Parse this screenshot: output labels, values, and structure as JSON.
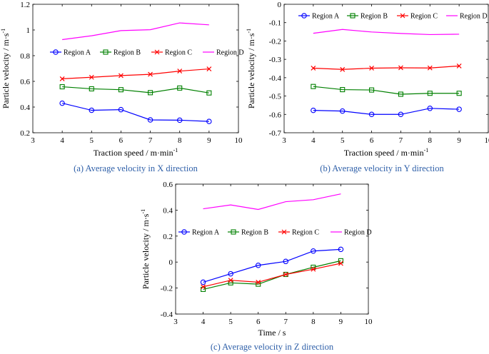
{
  "colors": {
    "region_a": "#0000ff",
    "region_b": "#008000",
    "region_c": "#ff0000",
    "region_d": "#ff00ff",
    "caption": "#2e5fa8",
    "axis": "#000000"
  },
  "chart_data": [
    {
      "id": "a",
      "type": "line",
      "caption": "(a) Average velocity in X direction",
      "xlabel": "Traction speed / m·min",
      "xlabel_sup": "-1",
      "ylabel": "Particle velocity / m·s",
      "ylabel_sup": "-1",
      "xlim": [
        3,
        10
      ],
      "ylim": [
        0.2,
        1.2
      ],
      "xticks": [
        3,
        4,
        5,
        6,
        7,
        8,
        9,
        10
      ],
      "yticks": [
        0.2,
        0.4,
        0.6,
        0.8,
        1,
        1.2
      ],
      "legend": "mid-right, horizontal",
      "x": [
        4,
        5,
        6,
        7,
        8,
        9
      ],
      "series": [
        {
          "name": "Region A",
          "marker": "circle",
          "values": [
            0.43,
            0.375,
            0.38,
            0.3,
            0.298,
            0.288
          ]
        },
        {
          "name": "Region B",
          "marker": "square",
          "values": [
            0.558,
            0.542,
            0.535,
            0.512,
            0.548,
            0.51
          ]
        },
        {
          "name": "Region C",
          "marker": "cross",
          "values": [
            0.62,
            0.632,
            0.645,
            0.655,
            0.68,
            0.697
          ]
        },
        {
          "name": "Region D",
          "marker": "none",
          "values": [
            0.925,
            0.955,
            0.995,
            1.002,
            1.055,
            1.04
          ]
        }
      ]
    },
    {
      "id": "b",
      "type": "line",
      "caption": "(b) Average velocity in Y direction",
      "xlabel": "Traction speed / m·min",
      "xlabel_sup": "-1",
      "ylabel": "Particle velocity / m·s",
      "ylabel_sup": "-1",
      "xlim": [
        3,
        10
      ],
      "ylim": [
        -0.7,
        0
      ],
      "xticks": [
        3,
        4,
        5,
        6,
        7,
        8,
        9,
        10
      ],
      "yticks": [
        -0.7,
        -0.6,
        -0.5,
        -0.4,
        -0.3,
        -0.2,
        -0.1,
        0
      ],
      "legend": "top, horizontal",
      "x": [
        4,
        5,
        6,
        7,
        8,
        9
      ],
      "series": [
        {
          "name": "Region A",
          "marker": "circle",
          "values": [
            -0.578,
            -0.582,
            -0.6,
            -0.6,
            -0.567,
            -0.572
          ]
        },
        {
          "name": "Region B",
          "marker": "square",
          "values": [
            -0.448,
            -0.465,
            -0.467,
            -0.49,
            -0.485,
            -0.485
          ]
        },
        {
          "name": "Region C",
          "marker": "cross",
          "values": [
            -0.348,
            -0.355,
            -0.348,
            -0.346,
            -0.347,
            -0.336
          ]
        },
        {
          "name": "Region D",
          "marker": "none",
          "values": [
            -0.158,
            -0.137,
            -0.151,
            -0.159,
            -0.165,
            -0.163
          ]
        }
      ]
    },
    {
      "id": "c",
      "type": "line",
      "caption": "(c) Average velocity in Z direction",
      "xlabel": "Time / s",
      "xlabel_sup": "",
      "ylabel": "Particle velocity / m·s",
      "ylabel_sup": "-1",
      "xlim": [
        3,
        10
      ],
      "ylim": [
        -0.4,
        0.6
      ],
      "xticks": [
        3,
        4,
        5,
        6,
        7,
        8,
        9,
        10
      ],
      "yticks": [
        -0.4,
        -0.2,
        0,
        0.2,
        0.4,
        0.6
      ],
      "legend": "middle, horizontal",
      "x": [
        4,
        5,
        6,
        7,
        8,
        9
      ],
      "series": [
        {
          "name": "Region A",
          "marker": "circle",
          "values": [
            -0.155,
            -0.09,
            -0.025,
            0.005,
            0.085,
            0.098
          ]
        },
        {
          "name": "Region B",
          "marker": "square",
          "values": [
            -0.21,
            -0.16,
            -0.17,
            -0.095,
            -0.04,
            0.01
          ]
        },
        {
          "name": "Region C",
          "marker": "cross",
          "values": [
            -0.19,
            -0.14,
            -0.155,
            -0.095,
            -0.055,
            -0.01
          ]
        },
        {
          "name": "Region D",
          "marker": "none",
          "values": [
            0.41,
            0.44,
            0.405,
            0.465,
            0.48,
            0.525
          ]
        }
      ]
    }
  ]
}
